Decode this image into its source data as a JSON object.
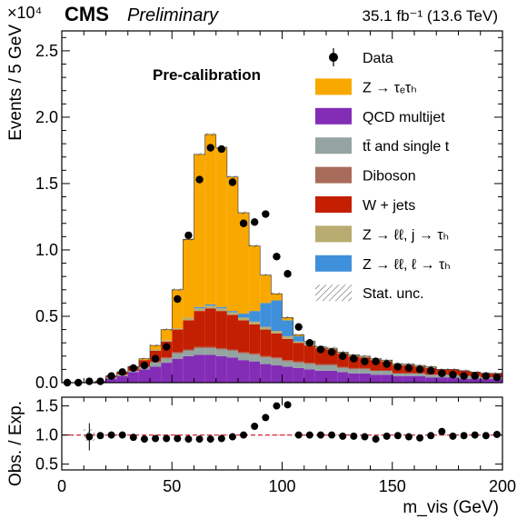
{
  "header": {
    "experiment": "CMS",
    "status": "Preliminary",
    "lumi": "35.1 fb⁻¹ (13.6 TeV)",
    "multiplier": "×10⁴"
  },
  "annotation": "Pre-calibration",
  "chart_data": {
    "type": "bar",
    "subtype": "stacked-histogram-with-ratio",
    "x_bin_width": 5,
    "x_bin_edges_start": 0,
    "xlim": [
      0,
      200
    ],
    "ylim": [
      0,
      2.65
    ],
    "y_scale_factor": "×10⁴",
    "xlabel": "m_vis (GeV)",
    "ylabel": "Events / 5 GeV",
    "ratio_ylabel": "Obs. / Exp.",
    "ratio_ylim": [
      0.4,
      1.65
    ],
    "ratio_yticks": [
      "0.5",
      "1.0",
      "1.5"
    ],
    "x_ticks": [
      "0",
      "50",
      "100",
      "150",
      "200"
    ],
    "y_ticks": [
      "0.0",
      "0.5",
      "1.0",
      "1.5",
      "2.0",
      "2.5"
    ],
    "legend_position": "top-right",
    "colors": {
      "ztt": "#f9a800",
      "qcd": "#832db6",
      "top": "#94a4a2",
      "diboson": "#a96b59",
      "wjets": "#c31f00",
      "zll_jfake": "#b9ac70",
      "zll_lfake": "#3f90da",
      "ratio_line": "#e42536"
    },
    "legend": [
      {
        "key": "data",
        "label": "Data"
      },
      {
        "key": "ztt",
        "label": "Z → τₑτₕ"
      },
      {
        "key": "qcd",
        "label": "QCD multijet"
      },
      {
        "key": "top",
        "label": "tt̄ and single t"
      },
      {
        "key": "diboson",
        "label": "Diboson"
      },
      {
        "key": "wjets",
        "label": "W + jets"
      },
      {
        "key": "zll_jfake",
        "label": "Z → ℓℓ, j → τₕ"
      },
      {
        "key": "zll_lfake",
        "label": "Z → ℓℓ, ℓ → τₕ"
      },
      {
        "key": "unc",
        "label": "Stat. unc."
      }
    ],
    "series": [
      {
        "key": "qcd",
        "name": "QCD multijet",
        "values": [
          0.0,
          0.0,
          0.0,
          0.01,
          0.03,
          0.05,
          0.08,
          0.1,
          0.12,
          0.15,
          0.18,
          0.2,
          0.21,
          0.21,
          0.2,
          0.19,
          0.17,
          0.16,
          0.14,
          0.13,
          0.12,
          0.11,
          0.1,
          0.09,
          0.09,
          0.08,
          0.07,
          0.07,
          0.06,
          0.06,
          0.05,
          0.05,
          0.05,
          0.04,
          0.04,
          0.04,
          0.03,
          0.03,
          0.03,
          0.03
        ]
      },
      {
        "key": "top",
        "name": "tt̄ and single t",
        "values": [
          0.0,
          0.0,
          0.0,
          0.0,
          0.01,
          0.01,
          0.01,
          0.02,
          0.03,
          0.03,
          0.04,
          0.04,
          0.05,
          0.05,
          0.05,
          0.05,
          0.05,
          0.05,
          0.05,
          0.05,
          0.04,
          0.04,
          0.04,
          0.04,
          0.04,
          0.03,
          0.03,
          0.03,
          0.03,
          0.03,
          0.02,
          0.02,
          0.02,
          0.02,
          0.02,
          0.02,
          0.02,
          0.02,
          0.01,
          0.01
        ]
      },
      {
        "key": "diboson",
        "name": "Diboson",
        "values": [
          0.0,
          0.0,
          0.0,
          0.0,
          0.0,
          0.0,
          0.0,
          0.0,
          0.01,
          0.01,
          0.01,
          0.01,
          0.01,
          0.01,
          0.01,
          0.01,
          0.01,
          0.01,
          0.01,
          0.01,
          0.01,
          0.01,
          0.01,
          0.01,
          0.01,
          0.01,
          0.01,
          0.01,
          0.0,
          0.0,
          0.0,
          0.0,
          0.0,
          0.0,
          0.0,
          0.0,
          0.0,
          0.0,
          0.0,
          0.0
        ]
      },
      {
        "key": "wjets",
        "name": "W + jets",
        "values": [
          0.0,
          0.0,
          0.0,
          0.0,
          0.01,
          0.02,
          0.03,
          0.05,
          0.08,
          0.12,
          0.17,
          0.22,
          0.27,
          0.29,
          0.28,
          0.26,
          0.24,
          0.22,
          0.2,
          0.18,
          0.16,
          0.14,
          0.13,
          0.12,
          0.11,
          0.1,
          0.09,
          0.08,
          0.08,
          0.07,
          0.06,
          0.06,
          0.05,
          0.05,
          0.04,
          0.04,
          0.04,
          0.03,
          0.03,
          0.03
        ]
      },
      {
        "key": "zll_jfake",
        "name": "Z → ℓℓ, j → τₕ",
        "values": [
          0.0,
          0.0,
          0.0,
          0.0,
          0.0,
          0.0,
          0.0,
          0.0,
          0.01,
          0.01,
          0.01,
          0.02,
          0.02,
          0.02,
          0.02,
          0.02,
          0.02,
          0.02,
          0.02,
          0.02,
          0.02,
          0.01,
          0.01,
          0.01,
          0.01,
          0.01,
          0.01,
          0.01,
          0.01,
          0.01,
          0.01,
          0.01,
          0.01,
          0.01,
          0.0,
          0.0,
          0.0,
          0.0,
          0.0,
          0.0
        ]
      },
      {
        "key": "zll_lfake",
        "name": "Z → ℓℓ, ℓ → τₕ",
        "values": [
          0.0,
          0.0,
          0.0,
          0.0,
          0.0,
          0.0,
          0.0,
          0.0,
          0.0,
          0.0,
          0.0,
          0.0,
          0.01,
          0.01,
          0.01,
          0.01,
          0.03,
          0.08,
          0.18,
          0.23,
          0.12,
          0.04,
          0.01,
          0.0,
          0.0,
          0.0,
          0.0,
          0.0,
          0.0,
          0.0,
          0.0,
          0.0,
          0.0,
          0.0,
          0.0,
          0.0,
          0.0,
          0.0,
          0.0,
          0.0
        ]
      },
      {
        "key": "ztt",
        "name": "Z → τₑτₕ",
        "values": [
          0.0,
          0.0,
          0.0,
          0.0,
          0.0,
          0.0,
          0.0,
          0.01,
          0.03,
          0.08,
          0.29,
          0.59,
          1.15,
          1.28,
          1.2,
          1.01,
          0.76,
          0.49,
          0.21,
          0.05,
          0.02,
          0.01,
          0.01,
          0.0,
          0.0,
          0.0,
          0.0,
          0.0,
          0.0,
          0.0,
          0.0,
          0.0,
          0.0,
          0.0,
          0.0,
          0.0,
          0.0,
          0.0,
          0.0,
          0.0
        ]
      }
    ],
    "data_points": {
      "name": "Data",
      "x": [
        2.5,
        7.5,
        12.5,
        17.5,
        22.5,
        27.5,
        32.5,
        37.5,
        42.5,
        47.5,
        52.5,
        57.5,
        62.5,
        67.5,
        72.5,
        77.5,
        82.5,
        87.5,
        92.5,
        97.5,
        102.5,
        107.5,
        112.5,
        117.5,
        122.5,
        127.5,
        132.5,
        137.5,
        142.5,
        147.5,
        152.5,
        157.5,
        162.5,
        167.5,
        172.5,
        177.5,
        182.5,
        187.5,
        192.5,
        197.5
      ],
      "y": [
        0.0,
        0.0,
        0.01,
        0.01,
        0.05,
        0.08,
        0.11,
        0.13,
        0.18,
        0.27,
        0.63,
        1.11,
        1.53,
        1.77,
        1.76,
        1.51,
        1.2,
        1.21,
        1.27,
        0.95,
        0.82,
        0.42,
        0.3,
        0.25,
        0.23,
        0.2,
        0.18,
        0.16,
        0.16,
        0.14,
        0.12,
        0.11,
        0.1,
        0.09,
        0.07,
        0.06,
        0.05,
        0.05,
        0.05,
        0.04
      ]
    },
    "ratio": {
      "x": [
        12.5,
        17.5,
        22.5,
        27.5,
        32.5,
        37.5,
        42.5,
        47.5,
        52.5,
        57.5,
        62.5,
        67.5,
        72.5,
        77.5,
        82.5,
        87.5,
        92.5,
        97.5,
        102.5,
        107.5,
        112.5,
        117.5,
        122.5,
        127.5,
        132.5,
        137.5,
        142.5,
        147.5,
        152.5,
        157.5,
        162.5,
        167.5,
        172.5,
        177.5,
        182.5,
        187.5,
        192.5,
        197.5
      ],
      "y": [
        0.97,
        0.99,
        1.0,
        1.0,
        0.96,
        0.93,
        0.94,
        0.94,
        0.94,
        0.93,
        0.93,
        0.93,
        0.94,
        0.97,
        1.0,
        1.15,
        1.3,
        1.5,
        1.52,
        1.0,
        1.0,
        1.0,
        1.0,
        0.98,
        0.98,
        0.97,
        0.93,
        0.98,
        0.99,
        0.97,
        0.95,
        0.99,
        1.06,
        0.98,
        0.99,
        1.0,
        0.99,
        1.01
      ],
      "reference": 1.0
    }
  }
}
